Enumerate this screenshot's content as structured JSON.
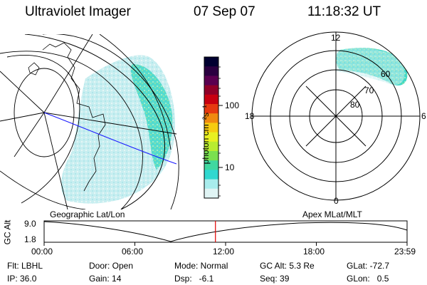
{
  "header": {
    "instrument": "Ultraviolet Imager",
    "date": "07 Sep 07",
    "time": "11:18:32 UT"
  },
  "colorbar": {
    "unit_label": "photon cm⁻²s⁻¹",
    "tick_labels": [
      "100",
      "10"
    ],
    "colors": [
      "#000030",
      "#2a0040",
      "#5a0050",
      "#900028",
      "#c80010",
      "#e63a10",
      "#f08a10",
      "#f6cc10",
      "#e8f020",
      "#b8ec30",
      "#7ae050",
      "#40d8a0",
      "#30d8d0",
      "#a8ecec",
      "#e0f4f4"
    ]
  },
  "polar_plot": {
    "mlt_labels": {
      "top": "12",
      "left": "18",
      "right": "6",
      "bottom": "0"
    },
    "lat_labels": [
      "60",
      "70",
      "80"
    ]
  },
  "map_caption": "Geographic Lat/Lon",
  "polar_caption": "Apex MLat/MLT",
  "altitude_plot": {
    "axis_label": "GC Alt",
    "y_ticks": [
      "9.0",
      "1.8"
    ],
    "x_ticks": [
      "00:00",
      "06:00",
      "12:00",
      "18:00",
      "23:59"
    ],
    "current_time_fraction": 0.472
  },
  "status": {
    "row1": {
      "filter": "Flt: LBHL",
      "door": "Door: Open",
      "mode": "Mode: Normal",
      "gc_alt": "GC Alt: 5.3 Re",
      "glat": "GLat: -72.7"
    },
    "row2": {
      "ip": "IP: 36.0",
      "gain": "Gain: 14",
      "dsp": "Dsp:   -6.1",
      "seq": "Seq: 39",
      "glon": "GLon:   0.5"
    }
  }
}
